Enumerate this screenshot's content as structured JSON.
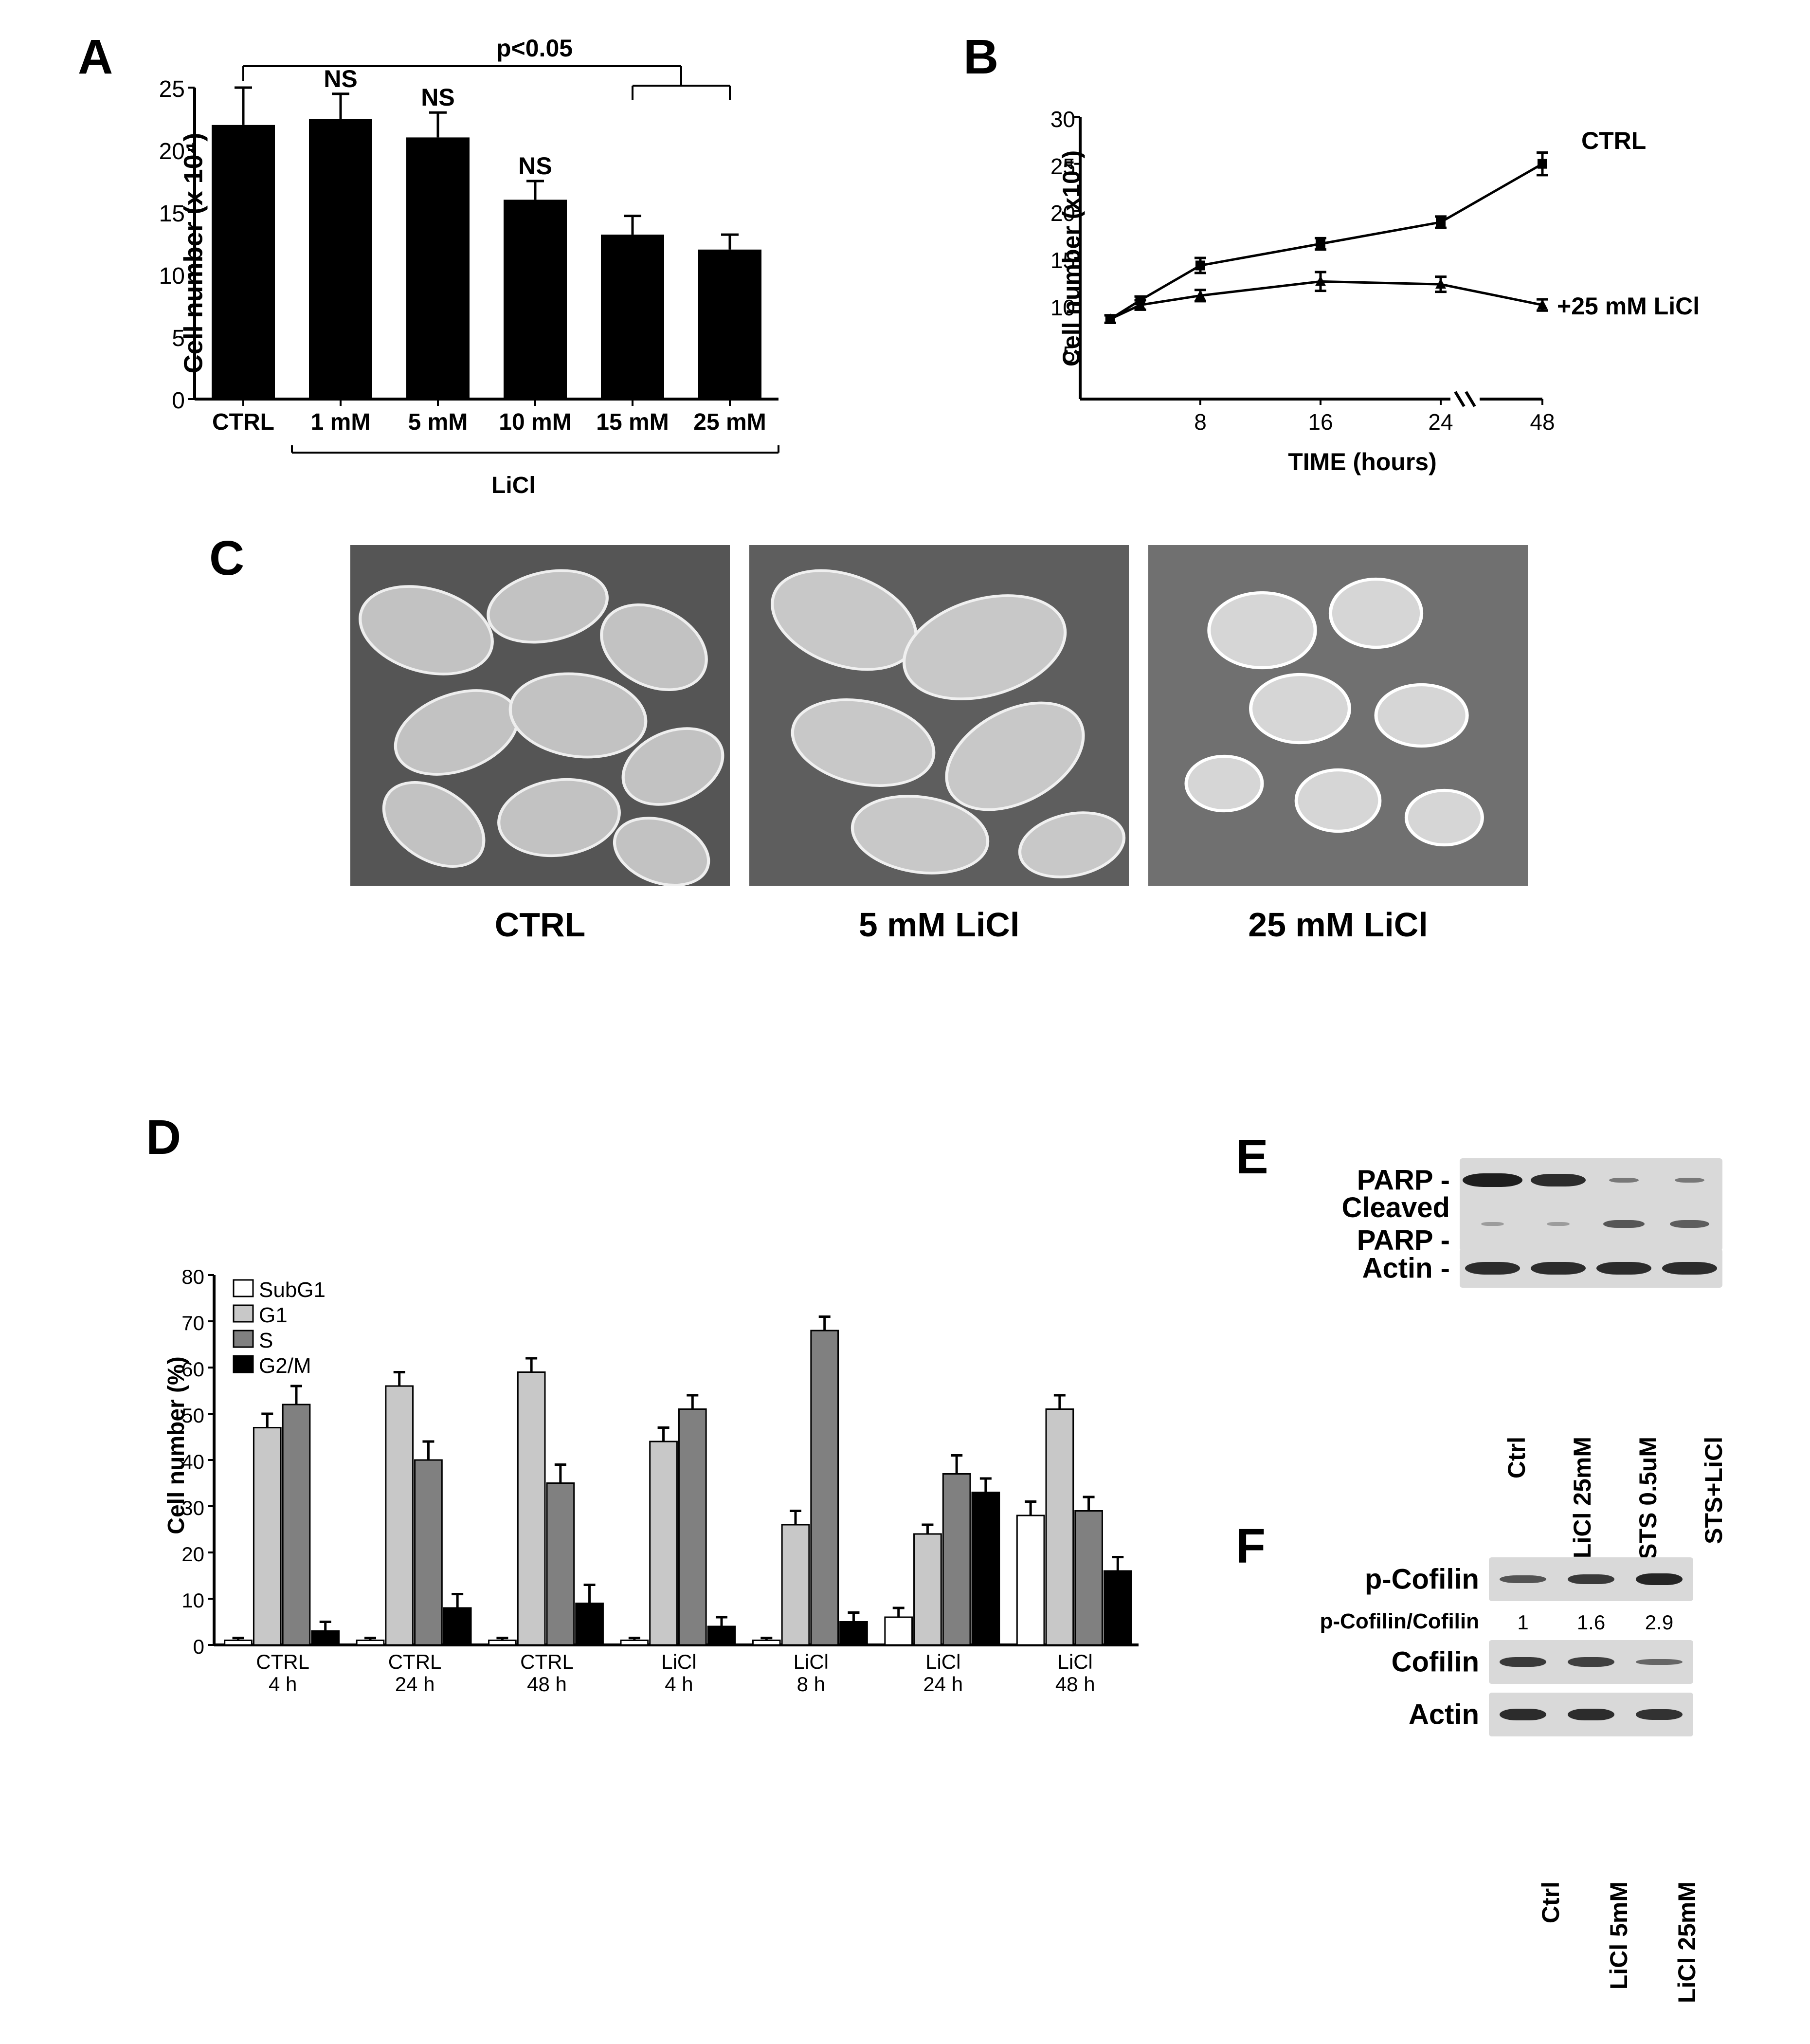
{
  "panelLabels": {
    "A": "A",
    "B": "B",
    "C": "C",
    "D": "D",
    "E": "E",
    "F": "F"
  },
  "panelA": {
    "type": "bar",
    "ylabel": "Cell number (x 10⁴)",
    "ylim": [
      0,
      25
    ],
    "ytick_step": 5,
    "categories": [
      "CTRL",
      "1 mM",
      "5 mM",
      "10 mM",
      "15 mM",
      "25 mM"
    ],
    "values": [
      22,
      22.5,
      21,
      16,
      13.2,
      12
    ],
    "errors": [
      3,
      2,
      2,
      1.5,
      1.5,
      1.2
    ],
    "bar_color": "#000000",
    "sig_annotation": {
      "label": "p<0.05",
      "from_idx": 0,
      "to_idx_range": [
        4,
        5
      ]
    },
    "ns_indices": [
      1,
      2,
      3
    ],
    "ns_label": "NS",
    "group_label": "LiCl",
    "xticks_fontsize": 48,
    "yticks_fontsize": 48,
    "bar_width_rel": 0.65
  },
  "panelB": {
    "type": "line",
    "ylabel": "Cell number (x10⁴)",
    "xlabel": "TIME (hours)",
    "ylim": [
      0,
      30
    ],
    "ytick_step": 5,
    "xticks": [
      8,
      16,
      24,
      48
    ],
    "axis_break_between": [
      24,
      48
    ],
    "series": [
      {
        "name": "CTRL",
        "marker": "square",
        "color": "#000000",
        "x": [
          2,
          4,
          8,
          16,
          24,
          48
        ],
        "y": [
          8.5,
          10.5,
          14.2,
          16.5,
          18.8,
          25
        ],
        "err": [
          0.4,
          0.4,
          0.8,
          0.6,
          0.6,
          1.2
        ]
      },
      {
        "name": "+25 mM LiCl",
        "marker": "triangle",
        "color": "#000000",
        "x": [
          2,
          4,
          8,
          16,
          24,
          48
        ],
        "y": [
          8.5,
          10,
          11,
          12.5,
          12.2,
          10
        ],
        "err": [
          0.4,
          0.5,
          0.6,
          1.0,
          0.8,
          0.6
        ]
      }
    ],
    "line_width": 5
  },
  "panelC": {
    "labels": [
      "CTRL",
      "5 mM LiCl",
      "25 mM LiCl"
    ],
    "image_bg": "#6b6b6b",
    "cell_fill": "#bfbfbf",
    "cell_stroke": "#f0f0f0"
  },
  "panelD": {
    "type": "grouped_bar",
    "ylabel": "Cell number (%)",
    "ylim": [
      0,
      80
    ],
    "ytick_step": 10,
    "legend": [
      {
        "name": "SubG1",
        "fill": "#ffffff",
        "stroke": "#000000"
      },
      {
        "name": "G1",
        "fill": "#c8c8c8",
        "stroke": "#000000"
      },
      {
        "name": "S",
        "fill": "#808080",
        "stroke": "#000000"
      },
      {
        "name": "G2/M",
        "fill": "#000000",
        "stroke": "#000000"
      }
    ],
    "groups": [
      {
        "label_top": "CTRL",
        "label_bot": "4 h",
        "values": [
          1,
          47,
          52,
          3
        ],
        "errors": [
          0.5,
          3,
          4,
          2
        ]
      },
      {
        "label_top": "CTRL",
        "label_bot": "24 h",
        "values": [
          1,
          56,
          40,
          8
        ],
        "errors": [
          0.5,
          3,
          4,
          3
        ]
      },
      {
        "label_top": "CTRL",
        "label_bot": "48 h",
        "values": [
          1,
          59,
          35,
          9
        ],
        "errors": [
          0.5,
          3,
          4,
          4
        ]
      },
      {
        "label_top": "LiCl",
        "label_bot": "4 h",
        "values": [
          1,
          44,
          51,
          4
        ],
        "errors": [
          0.5,
          3,
          3,
          2
        ]
      },
      {
        "label_top": "LiCl",
        "label_bot": "8 h",
        "values": [
          1,
          26,
          68,
          5
        ],
        "errors": [
          0.5,
          3,
          3,
          2
        ]
      },
      {
        "label_top": "LiCl",
        "label_bot": "24 h",
        "values": [
          6,
          24,
          37,
          33
        ],
        "errors": [
          2,
          2,
          4,
          3
        ]
      },
      {
        "label_top": "LiCl",
        "label_bot": "48 h",
        "values": [
          28,
          51,
          29,
          16
        ],
        "errors": [
          3,
          3,
          3,
          3
        ]
      }
    ],
    "bar_width": 0.22
  },
  "panelE": {
    "rows": [
      {
        "name": "PARP",
        "dash": true,
        "intensity": [
          1.0,
          0.9,
          0.35,
          0.35
        ]
      },
      {
        "name": "Cleaved PARP",
        "dash": true,
        "intensity": [
          0.1,
          0.1,
          0.6,
          0.55
        ]
      },
      {
        "name": "Actin",
        "dash": true,
        "intensity": [
          0.9,
          0.9,
          0.9,
          0.9
        ]
      }
    ],
    "lanes": [
      "Ctrl",
      "LiCl 25mM",
      "STS 0.5uM",
      "STS+LiCl"
    ]
  },
  "panelF": {
    "rows": [
      {
        "name": "p-Cofilin",
        "intensity": [
          0.6,
          0.8,
          0.95
        ]
      },
      {
        "name_ratio": "p-Cofilin/Cofilin",
        "ratios": [
          "1",
          "1.6",
          "2.9"
        ]
      },
      {
        "name": "Cofilin",
        "intensity": [
          0.8,
          0.75,
          0.45
        ]
      },
      {
        "name": "Actin",
        "intensity": [
          0.9,
          0.9,
          0.85
        ]
      }
    ],
    "lanes": [
      "Ctrl",
      "LiCl 5mM",
      "LiCl 25mM"
    ]
  }
}
